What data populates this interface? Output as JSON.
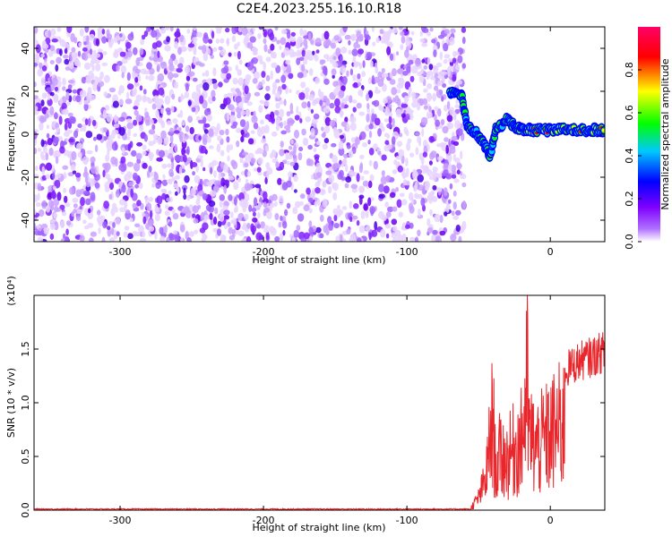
{
  "chart_data": [
    {
      "type": "heatmap",
      "title": "C2E4.2023.255.16.10.R18",
      "xlabel": "Height of straight line (km)",
      "ylabel": "Frequency (Hz)",
      "xlim": [
        -360,
        38
      ],
      "ylim": [
        -50,
        50
      ],
      "xticks": [
        -300,
        -200,
        -100,
        0
      ],
      "yticks": [
        -40,
        -20,
        0,
        20,
        40
      ],
      "colorbar": {
        "label": "Normalized spectral amplitude",
        "range": [
          0.0,
          1.0
        ],
        "ticks": [
          "0.0",
          "0.2",
          "0.4",
          "0.6",
          "0.8"
        ]
      },
      "colormap": [
        "#ffffff",
        "#7f00ff",
        "#0000ff",
        "#00ffff",
        "#00ff00",
        "#ffff00",
        "#ff0000",
        "#ff0066"
      ],
      "features": [
        {
          "name": "noise",
          "x_range": [
            -360,
            -60
          ],
          "freq_range": [
            -50,
            50
          ],
          "amplitude": 0.1
        },
        {
          "name": "signal",
          "points": [
            [
              -70,
              20
            ],
            [
              -62,
              19
            ],
            [
              -58,
              4
            ],
            [
              -52,
              1
            ],
            [
              -46,
              -5
            ],
            [
              -42,
              -10
            ],
            [
              -38,
              2
            ],
            [
              -30,
              7
            ],
            [
              -24,
              3
            ],
            [
              -18,
              2
            ],
            [
              -10,
              2
            ],
            [
              0,
              2
            ],
            [
              10,
              2
            ],
            [
              20,
              2
            ],
            [
              30,
              2
            ],
            [
              38,
              2
            ]
          ],
          "amplitude": 0.8
        }
      ]
    },
    {
      "type": "line",
      "xlabel": "Height of straight line (km)",
      "ylabel": "SNR (10 * v/v)",
      "yscale_label": "(x10⁴)",
      "xlim": [
        -360,
        38
      ],
      "ylim": [
        0,
        2.0
      ],
      "xticks": [
        -300,
        -200,
        -100,
        0
      ],
      "yticks": [
        0.0,
        0.5,
        1.0,
        1.5
      ],
      "color": "#e8262b",
      "series": [
        {
          "x": [
            -360,
            -300,
            -200,
            -100,
            -60,
            -55,
            -50,
            -45,
            -42,
            -40,
            -38,
            -35,
            -30,
            -25,
            -20,
            -16,
            -15,
            -10,
            -5,
            0,
            5,
            10,
            15,
            20,
            25,
            30,
            38
          ],
          "values": [
            0.0,
            0.0,
            0.0,
            0.0,
            0.01,
            0.05,
            0.2,
            0.5,
            1.1,
            1.5,
            0.6,
            0.9,
            0.8,
            1.0,
            1.1,
            2.0,
            1.2,
            1.0,
            1.1,
            1.2,
            1.3,
            1.4,
            1.45,
            1.5,
            1.52,
            1.55,
            1.6
          ]
        }
      ]
    }
  ]
}
